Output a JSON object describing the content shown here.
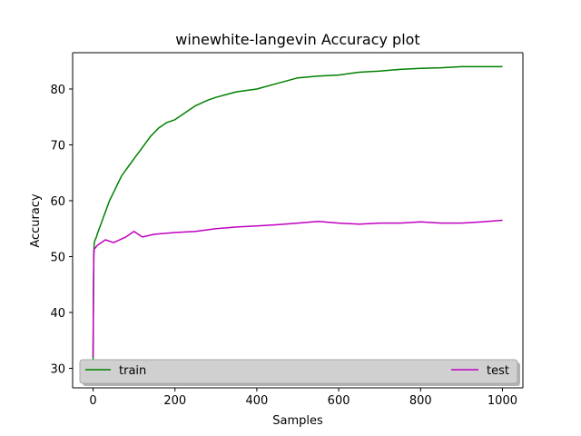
{
  "chart_data": {
    "type": "line",
    "title": "winewhite-langevin Accuracy plot",
    "xlabel": "Samples",
    "ylabel": "Accuracy",
    "xlim": [
      -50,
      1050
    ],
    "ylim": [
      26.5,
      86.5
    ],
    "xticks": [
      0,
      200,
      400,
      600,
      800,
      1000
    ],
    "yticks": [
      30,
      40,
      50,
      60,
      70,
      80
    ],
    "legend_position": "bottom",
    "grid": false,
    "series": [
      {
        "name": "train",
        "color": "#008000",
        "x": [
          0,
          1,
          2,
          3,
          5,
          8,
          10,
          15,
          20,
          25,
          30,
          40,
          50,
          60,
          70,
          80,
          90,
          100,
          120,
          140,
          160,
          180,
          200,
          220,
          250,
          280,
          300,
          350,
          400,
          450,
          500,
          550,
          600,
          650,
          700,
          750,
          800,
          850,
          900,
          950,
          1000
        ],
        "y": [
          30,
          45,
          51,
          52.5,
          53,
          53.5,
          54,
          55,
          56,
          57,
          58,
          60,
          61.5,
          63,
          64.5,
          65.5,
          66.5,
          67.5,
          69.5,
          71.5,
          73,
          74,
          74.5,
          75.5,
          77,
          78,
          78.5,
          79.5,
          80,
          81,
          82,
          82.3,
          82.5,
          83,
          83.2,
          83.5,
          83.7,
          83.8,
          84,
          84,
          84
        ]
      },
      {
        "name": "test",
        "color": "#bf00bf",
        "x": [
          0,
          1,
          2,
          3,
          5,
          10,
          20,
          30,
          50,
          80,
          100,
          120,
          150,
          200,
          250,
          300,
          350,
          400,
          450,
          500,
          550,
          600,
          650,
          700,
          750,
          800,
          850,
          900,
          950,
          1000
        ],
        "y": [
          32,
          45,
          50.5,
          51.5,
          51.5,
          52,
          52.5,
          53,
          52.5,
          53.5,
          54.5,
          53.5,
          54,
          54.3,
          54.5,
          55,
          55.3,
          55.5,
          55.7,
          56,
          56.3,
          56,
          55.8,
          56,
          56,
          56.2,
          56,
          56,
          56.2,
          56.5
        ]
      }
    ]
  }
}
